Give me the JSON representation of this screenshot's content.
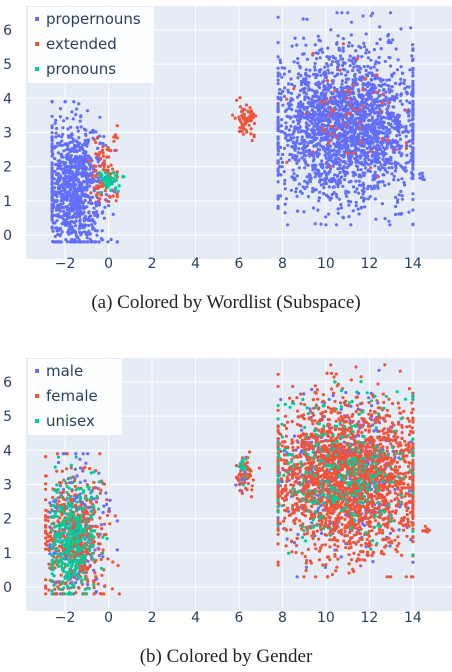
{
  "chart_data": [
    {
      "type": "scatter",
      "caption": "(a) Colored by Wordlist (Subspace)",
      "xlim": [
        -3.8,
        15.8
      ],
      "ylim": [
        -0.7,
        6.7
      ],
      "x_ticks": [
        "−2",
        "0",
        "2",
        "4",
        "6",
        "8",
        "10",
        "12",
        "14"
      ],
      "x_tick_values": [
        -2,
        0,
        2,
        4,
        6,
        8,
        10,
        12,
        14
      ],
      "y_ticks": [
        "0",
        "1",
        "2",
        "3",
        "4",
        "5",
        "6"
      ],
      "y_tick_values": [
        0,
        1,
        2,
        3,
        4,
        5,
        6
      ],
      "grid": true,
      "legend_position": "top-left",
      "series": [
        {
          "name": "propernouns",
          "color": "#636efa",
          "clusters": [
            {
              "cx": -1.6,
              "cy": 1.4,
              "sx": 0.7,
              "sy": 0.95,
              "n": 900,
              "xmin": -2.6,
              "xmax": 0.4,
              "ymin": -0.2,
              "ymax": 3.9
            },
            {
              "cx": 11.0,
              "cy": 3.2,
              "sx": 1.7,
              "sy": 1.1,
              "n": 2300,
              "xmin": 7.8,
              "xmax": 14.0,
              "ymin": 0.3,
              "ymax": 6.5
            },
            {
              "cx": 14.4,
              "cy": 1.7,
              "sx": 0.1,
              "sy": 0.08,
              "n": 8
            }
          ]
        },
        {
          "name": "extended",
          "color": "#ef553b",
          "clusters": [
            {
              "cx": -0.2,
              "cy": 1.8,
              "sx": 0.35,
              "sy": 0.55,
              "n": 90,
              "xmin": -0.9,
              "xmax": 0.4,
              "ymin": 1.0,
              "ymax": 3.2
            },
            {
              "cx": 6.3,
              "cy": 3.3,
              "sx": 0.22,
              "sy": 0.25,
              "n": 70
            },
            {
              "cx": 11.0,
              "cy": 3.4,
              "sx": 1.4,
              "sy": 1.0,
              "n": 60,
              "xmin": 8.2,
              "xmax": 13.7,
              "ymin": 1.0,
              "ymax": 6.0
            }
          ]
        },
        {
          "name": "pronouns",
          "color": "#00cc96",
          "clusters": [
            {
              "cx": 0.05,
              "cy": 1.55,
              "sx": 0.25,
              "sy": 0.15,
              "n": 45
            }
          ]
        }
      ]
    },
    {
      "type": "scatter",
      "caption": "(b) Colored by Gender",
      "xlim": [
        -3.8,
        15.8
      ],
      "ylim": [
        -0.7,
        6.7
      ],
      "x_ticks": [
        "−2",
        "0",
        "2",
        "4",
        "6",
        "8",
        "10",
        "12",
        "14"
      ],
      "x_tick_values": [
        -2,
        0,
        2,
        4,
        6,
        8,
        10,
        12,
        14
      ],
      "y_ticks": [
        "0",
        "1",
        "2",
        "3",
        "4",
        "5",
        "6"
      ],
      "y_tick_values": [
        0,
        1,
        2,
        3,
        4,
        5,
        6
      ],
      "grid": true,
      "legend_position": "top-left",
      "series": [
        {
          "name": "male",
          "color": "#636efa",
          "clusters": [
            {
              "cx": -1.5,
              "cy": 1.6,
              "sx": 0.7,
              "sy": 0.95,
              "n": 280,
              "xmin": -2.7,
              "xmax": 0.4,
              "ymin": -0.2,
              "ymax": 3.9
            },
            {
              "cx": 10.8,
              "cy": 3.3,
              "sx": 1.6,
              "sy": 1.1,
              "n": 450,
              "xmin": 7.8,
              "xmax": 14.0,
              "ymin": 0.3,
              "ymax": 6.5
            },
            {
              "cx": 6.2,
              "cy": 3.4,
              "sx": 0.2,
              "sy": 0.25,
              "n": 15
            }
          ]
        },
        {
          "name": "female",
          "color": "#ef553b",
          "clusters": [
            {
              "cx": -1.6,
              "cy": 1.5,
              "sx": 0.75,
              "sy": 0.9,
              "n": 500,
              "xmin": -2.9,
              "xmax": 0.5,
              "ymin": -0.2,
              "ymax": 3.9
            },
            {
              "cx": 11.0,
              "cy": 3.2,
              "sx": 1.7,
              "sy": 1.1,
              "n": 2300,
              "xmin": 7.8,
              "xmax": 14.0,
              "ymin": 0.3,
              "ymax": 6.5
            },
            {
              "cx": 6.3,
              "cy": 3.3,
              "sx": 0.22,
              "sy": 0.25,
              "n": 55
            },
            {
              "cx": 14.6,
              "cy": 1.7,
              "sx": 0.1,
              "sy": 0.08,
              "n": 8
            }
          ]
        },
        {
          "name": "unisex",
          "color": "#00cc96",
          "clusters": [
            {
              "cx": -1.8,
              "cy": 1.4,
              "sx": 0.55,
              "sy": 0.9,
              "n": 330,
              "xmin": -2.6,
              "xmax": 0.2,
              "ymin": -0.2,
              "ymax": 3.8
            },
            {
              "cx": 10.8,
              "cy": 3.3,
              "sx": 1.6,
              "sy": 1.1,
              "n": 300,
              "xmin": 7.8,
              "xmax": 14.0,
              "ymin": 0.3,
              "ymax": 6.5
            },
            {
              "cx": 6.2,
              "cy": 3.5,
              "sx": 0.15,
              "sy": 0.2,
              "n": 12
            }
          ]
        }
      ]
    }
  ]
}
